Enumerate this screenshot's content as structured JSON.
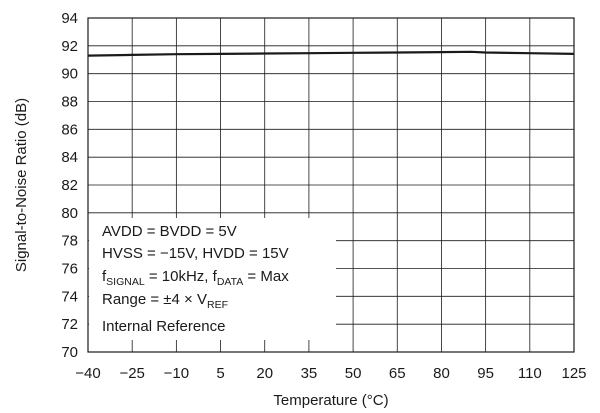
{
  "chart_data": {
    "type": "line",
    "title": "",
    "xlabel": "Temperature (°C)",
    "ylabel": "Signal-to-Noise Ratio (dB)",
    "xlim": [
      -40,
      125
    ],
    "ylim": [
      70,
      94
    ],
    "x_ticks": [
      "-40",
      "-25",
      "-10",
      "5",
      "20",
      "35",
      "50",
      "65",
      "80",
      "95",
      "110",
      "125"
    ],
    "y_ticks": [
      "70",
      "72",
      "74",
      "76",
      "78",
      "80",
      "82",
      "84",
      "86",
      "88",
      "90",
      "92",
      "94"
    ],
    "grid": true,
    "series": [
      {
        "x": [
          -40,
          -25,
          -10,
          5,
          20,
          35,
          50,
          65,
          80,
          90,
          95,
          110,
          125
        ],
        "y": [
          91.3,
          91.35,
          91.4,
          91.42,
          91.45,
          91.47,
          91.5,
          91.52,
          91.55,
          91.57,
          91.52,
          91.47,
          91.42
        ]
      }
    ],
    "annotations": {
      "line1": "AVDD = BVDD = 5V",
      "line2": "HVSS = −15V, HVDD = 15V",
      "line3": {
        "f1": "f",
        "sub1": "SIGNAL",
        "mid": " = 10kHz, f",
        "sub2": "DATA",
        "end": " = Max"
      },
      "line4": {
        "pre": "Range = ±4 × V",
        "sub": "REF"
      },
      "line5": "Internal Reference"
    },
    "colors": {
      "line": "#1a1a1a",
      "grid": "#1a1a1a",
      "frame": "#1a1a1a"
    }
  }
}
